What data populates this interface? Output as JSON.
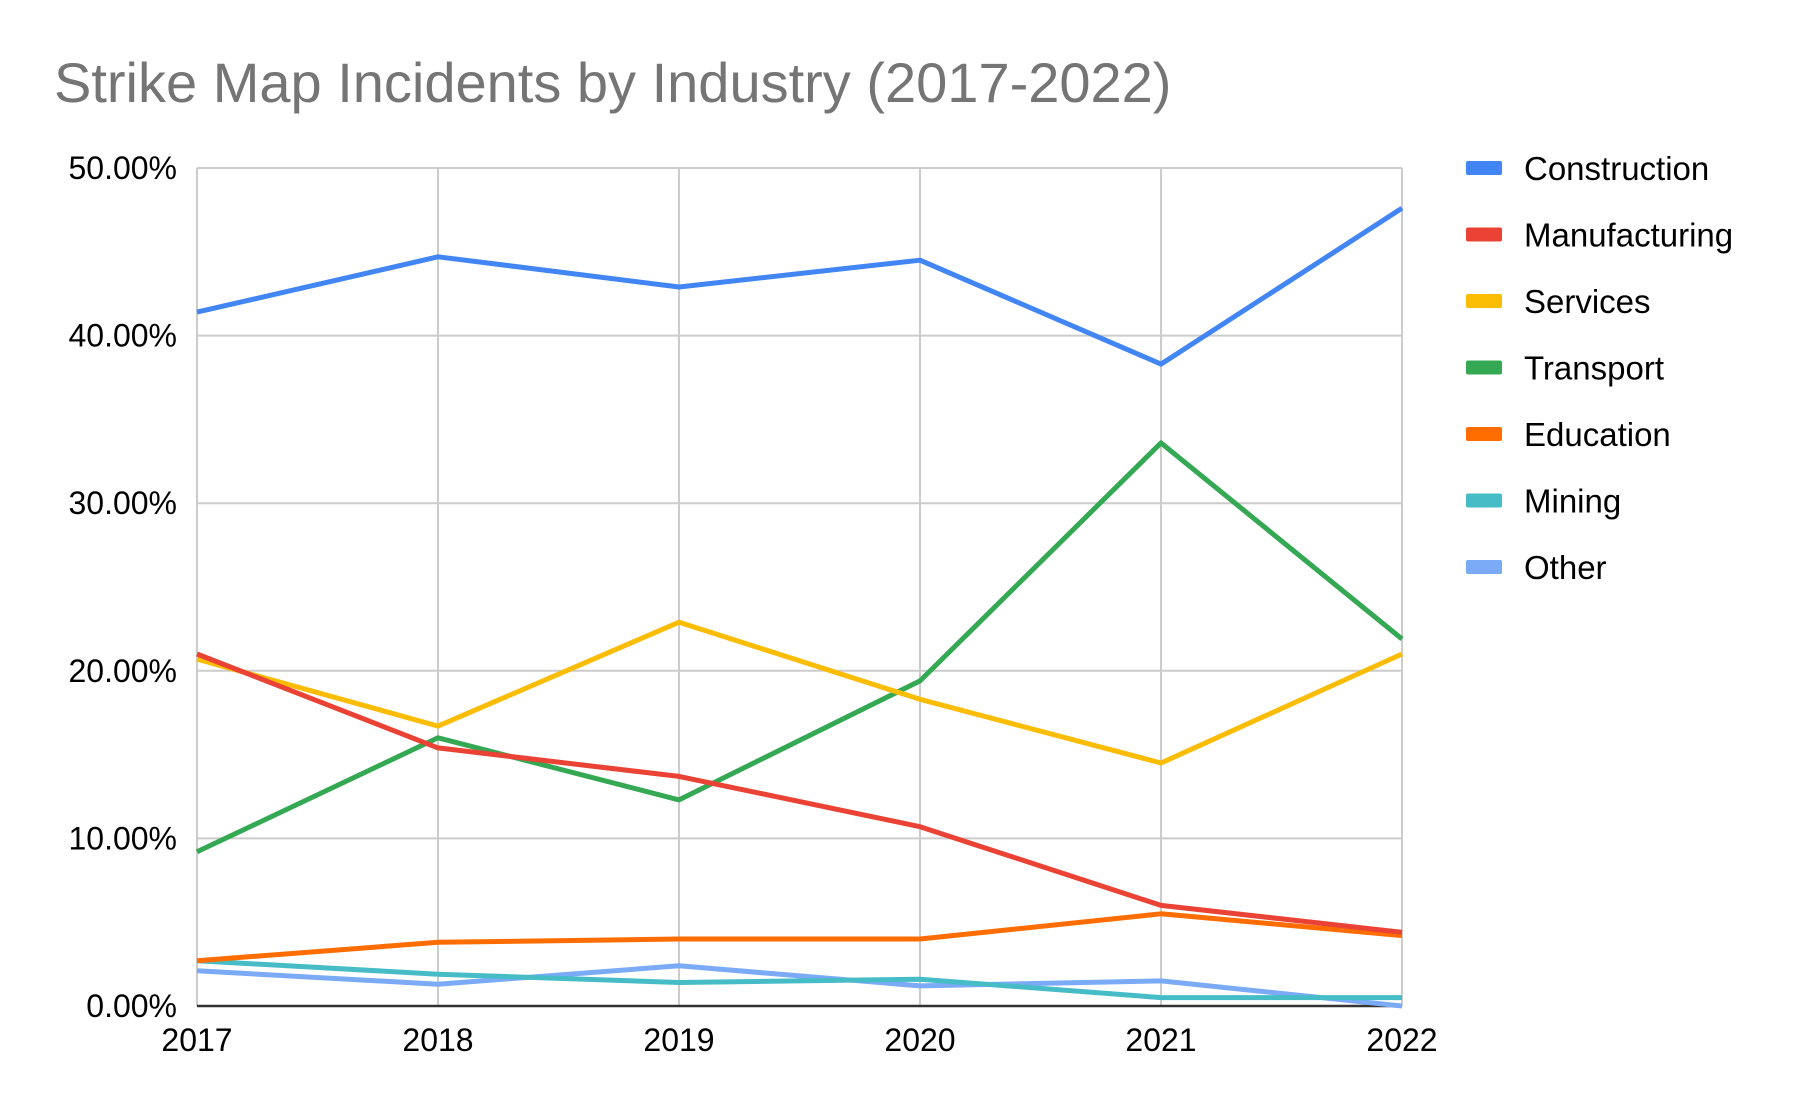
{
  "chart_data": {
    "type": "line",
    "title": "Strike Map Incidents by Industry (2017-2022)",
    "xlabel": "",
    "ylabel": "",
    "categories": [
      "2017",
      "2018",
      "2019",
      "2020",
      "2021",
      "2022"
    ],
    "ylim": [
      0,
      50
    ],
    "yticks": [
      "0.00%",
      "10.00%",
      "20.00%",
      "30.00%",
      "40.00%",
      "50.00%"
    ],
    "grid": true,
    "legend_position": "right",
    "series": [
      {
        "name": "Construction",
        "color": "#4285F4",
        "values": [
          41.4,
          44.7,
          42.9,
          44.5,
          38.3,
          47.6
        ]
      },
      {
        "name": "Manufacturing",
        "color": "#EA4335",
        "values": [
          21.0,
          15.4,
          13.7,
          10.7,
          6.0,
          4.4
        ]
      },
      {
        "name": "Services",
        "color": "#FBBC04",
        "values": [
          20.7,
          16.7,
          22.9,
          18.3,
          14.5,
          21.0
        ]
      },
      {
        "name": "Transport",
        "color": "#34A853",
        "values": [
          9.2,
          16.0,
          12.3,
          19.4,
          33.6,
          21.9
        ]
      },
      {
        "name": "Education",
        "color": "#FF6D01",
        "values": [
          2.7,
          3.8,
          4.0,
          4.0,
          5.5,
          4.2
        ]
      },
      {
        "name": "Mining",
        "color": "#46BDC6",
        "values": [
          2.7,
          1.9,
          1.4,
          1.6,
          0.5,
          0.5
        ]
      },
      {
        "name": "Other",
        "color": "#7BAAF7",
        "values": [
          2.1,
          1.3,
          2.4,
          1.2,
          1.5,
          0.0
        ]
      }
    ]
  }
}
